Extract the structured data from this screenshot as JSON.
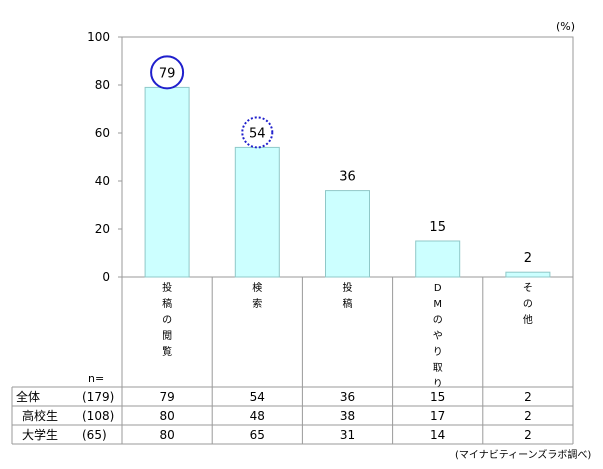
{
  "chart_data": {
    "type": "bar",
    "unit": "(%)",
    "categories": [
      "投稿の閲覧",
      "検索",
      "投稿",
      "DMのやり取り",
      "その他"
    ],
    "values": [
      79,
      54,
      36,
      15,
      2
    ],
    "ylim": [
      0,
      100
    ],
    "yticks": [
      0,
      20,
      40,
      60,
      80,
      100
    ],
    "highlight": [
      {
        "index": 0,
        "style": "solid"
      },
      {
        "index": 1,
        "style": "dotted"
      }
    ],
    "bar_color": "#ccffff",
    "bar_edge_color": "#8fc8c8",
    "circle_color": "#1f1fcc",
    "grid": false,
    "table": {
      "n_label": "n=",
      "rows": [
        {
          "label": "全体",
          "n": "(179)",
          "values": [
            79,
            54,
            36,
            15,
            2
          ]
        },
        {
          "label": "高校生",
          "n": "(108)",
          "values": [
            80,
            48,
            38,
            17,
            2
          ]
        },
        {
          "label": "大学生",
          "n": "(65)",
          "values": [
            80,
            65,
            31,
            14,
            2
          ]
        }
      ]
    },
    "source": "(マイナビティーンズラボ調べ)"
  }
}
